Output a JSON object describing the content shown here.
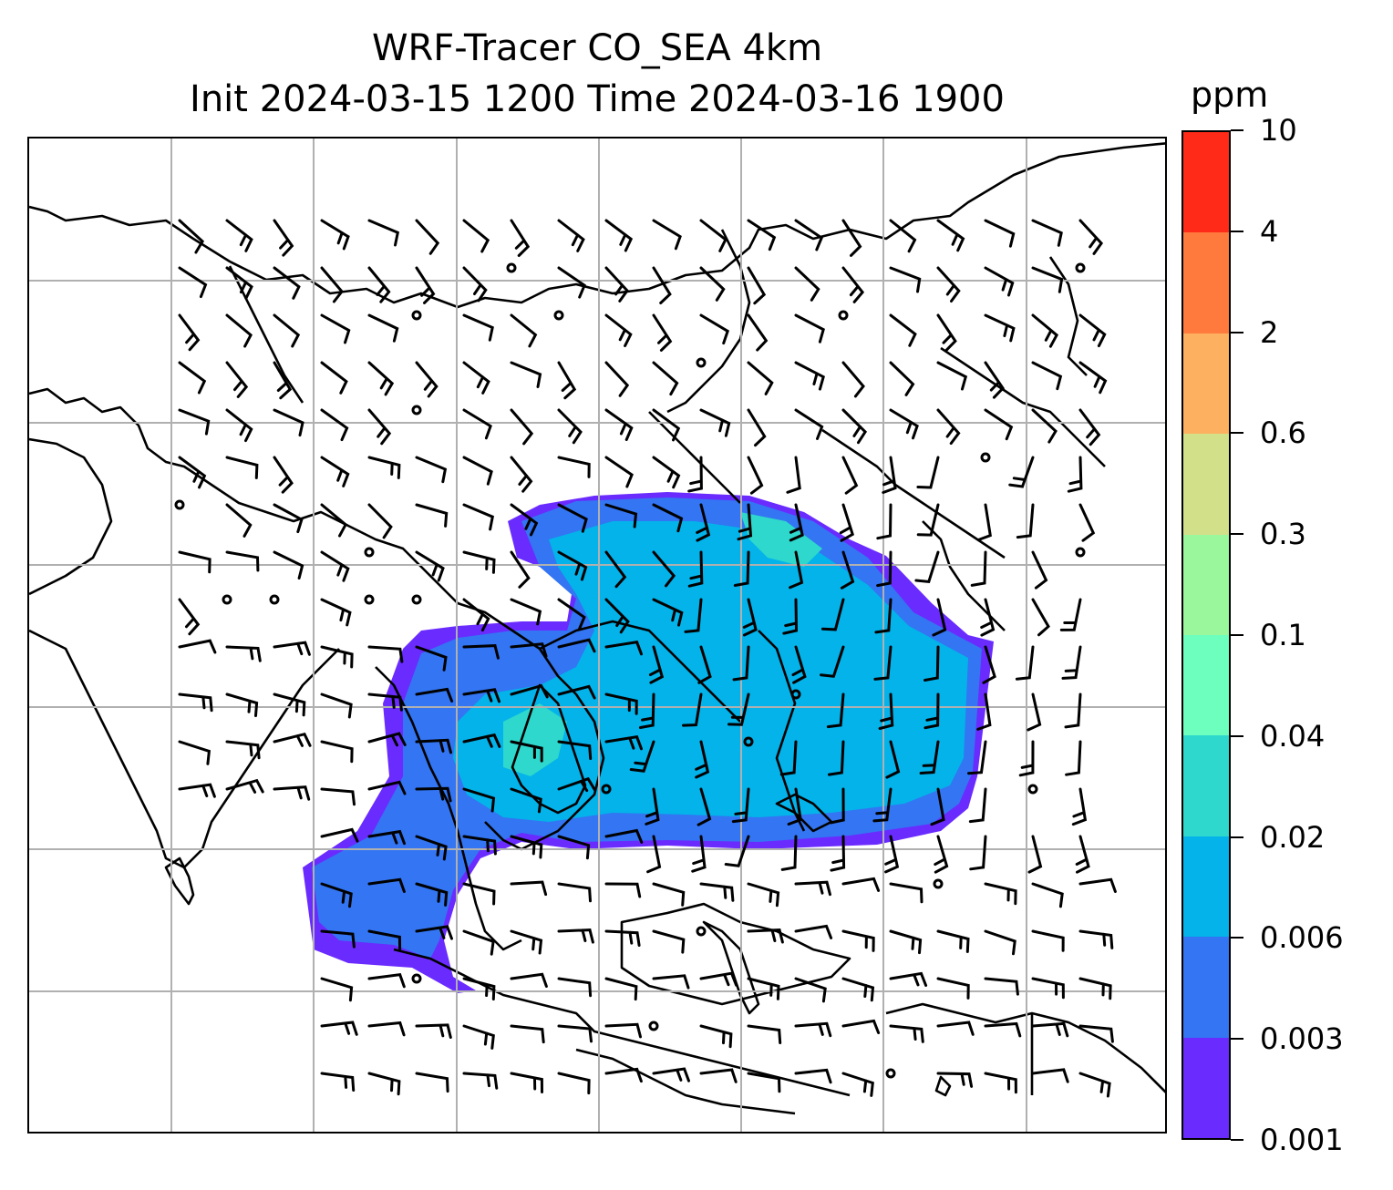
{
  "title_line1": "WRF-Tracer CO_SEA 4km",
  "title_line2": "Init 2024-03-15 1200 Time 2024-03-16 1900",
  "colorbar": {
    "unit": "ppm",
    "levels": [
      "0.001",
      "0.003",
      "0.006",
      "0.02",
      "0.04",
      "0.1",
      "0.3",
      "0.6",
      "2",
      "4",
      "10"
    ],
    "colors": [
      "#6a2bff",
      "#3375f2",
      "#03b3ea",
      "#2ed8cc",
      "#6dffbe",
      "#9af79c",
      "#d3e08a",
      "#fdb160",
      "#ff7a3c",
      "#ff2a18"
    ]
  },
  "map": {
    "plume_colors": {
      "outer": "#6a2bff",
      "mid": "#3375f2",
      "inner": "#03b3ea",
      "core": "#2ed8cc"
    },
    "gridline_color": "#b0b0b0",
    "coastline_color": "#000000"
  }
}
